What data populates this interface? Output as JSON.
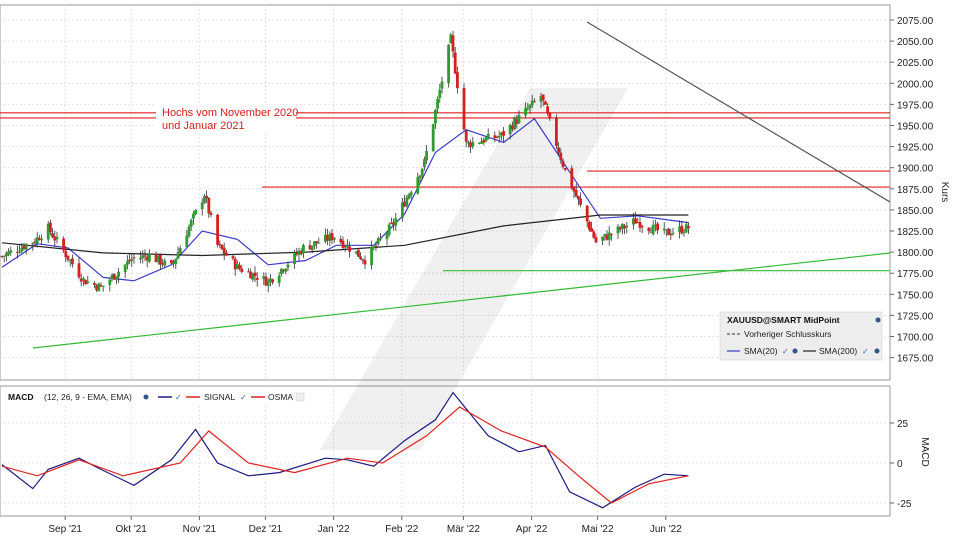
{
  "chart_data": [
    {
      "type": "candlestick",
      "ylabel": "Kurs",
      "ylim": [
        1655,
        2090
      ],
      "y_ticks": [
        "2075.00",
        "2050.00",
        "2025.00",
        "2000.00",
        "1975.00",
        "1950.00",
        "1925.00",
        "1900.00",
        "1875.00",
        "1850.00",
        "1825.00",
        "1800.00",
        "1775.00",
        "1750.00",
        "1725.00",
        "1700.00",
        "1675.00"
      ],
      "x_ticks": [
        "Sep '21",
        "Okt '21",
        "Nov '21",
        "Dez '21",
        "Jan '22",
        "Feb '22",
        "Mär '22",
        "Apr '22",
        "Mai '22",
        "Jun '22"
      ],
      "annotation": [
        "Hochs vom November 2020",
        "und Januar 2021"
      ],
      "legend": {
        "title": "XAUUSD@SMART MidPoint",
        "prev_close": "Vorheriger Schlusskurs",
        "sma20": "SMA(20)",
        "sma200": "SMA(200)"
      },
      "horizontal_levels": [
        1965,
        1959,
        1896,
        1877,
        1778
      ],
      "colors": {
        "up": "#2e9c2e",
        "down": "#d42020",
        "sma20": "#3a3ac8",
        "sma200": "#222222",
        "level": "#e02020",
        "support": "#33bb33",
        "trend": "#555555"
      },
      "series": [
        {
          "name": "close",
          "x": [
            "2021-08-16",
            "2021-08-31",
            "2021-09-06",
            "2021-09-22",
            "2021-09-30",
            "2021-10-14",
            "2021-10-22",
            "2021-11-01",
            "2021-11-08",
            "2021-11-16",
            "2021-11-22",
            "2021-12-01",
            "2021-12-15",
            "2021-12-31",
            "2022-01-14",
            "2022-01-28",
            "2022-02-10",
            "2022-02-24",
            "2022-03-08",
            "2022-03-15",
            "2022-03-31",
            "2022-04-18",
            "2022-04-29",
            "2022-05-13",
            "2022-05-31",
            "2022-06-13",
            "2022-06-24"
          ],
          "values": [
            1795,
            1814,
            1828,
            1767,
            1758,
            1792,
            1796,
            1782,
            1824,
            1869,
            1808,
            1782,
            1765,
            1805,
            1819,
            1791,
            1834,
            1906,
            2052,
            1928,
            1938,
            1985,
            1896,
            1812,
            1837,
            1822,
            1829
          ]
        },
        {
          "name": "SMA(20)",
          "x": [
            "2021-08-16",
            "2021-09-01",
            "2021-09-15",
            "2021-10-01",
            "2021-10-15",
            "2021-11-01",
            "2021-11-15",
            "2021-12-01",
            "2021-12-15",
            "2022-01-01",
            "2022-01-15",
            "2022-02-01",
            "2022-02-15",
            "2022-03-01",
            "2022-03-15",
            "2022-04-01",
            "2022-04-15",
            "2022-05-01",
            "2022-05-15",
            "2022-06-01",
            "2022-06-24"
          ],
          "values": [
            1782,
            1810,
            1805,
            1770,
            1766,
            1785,
            1825,
            1815,
            1785,
            1790,
            1808,
            1808,
            1845,
            1918,
            1945,
            1930,
            1958,
            1895,
            1840,
            1843,
            1835
          ]
        },
        {
          "name": "SMA(200)",
          "x": [
            "2021-08-16",
            "2021-10-01",
            "2021-11-15",
            "2022-01-01",
            "2022-02-15",
            "2022-04-01",
            "2022-05-15",
            "2022-06-24"
          ],
          "values": [
            1811,
            1799,
            1796,
            1800,
            1808,
            1831,
            1844,
            1844
          ]
        }
      ]
    },
    {
      "type": "line",
      "ylabel": "MACD",
      "y_ticks": [
        "25",
        "0",
        "-25"
      ],
      "legend": {
        "macd": "MACD",
        "params": "(12, 26, 9 - EMA, EMA)",
        "signal": "SIGNAL",
        "osma": "OSMA"
      },
      "series": [
        {
          "name": "MACD",
          "x": [
            "2021-08-16",
            "2021-08-30",
            "2021-09-06",
            "2021-09-20",
            "2021-09-30",
            "2021-10-15",
            "2021-11-01",
            "2021-11-12",
            "2021-11-22",
            "2021-12-06",
            "2021-12-20",
            "2022-01-10",
            "2022-01-20",
            "2022-02-01",
            "2022-02-15",
            "2022-03-01",
            "2022-03-09",
            "2022-03-25",
            "2022-04-08",
            "2022-04-20",
            "2022-05-01",
            "2022-05-16",
            "2022-05-31",
            "2022-06-13",
            "2022-06-24"
          ],
          "values": [
            -1,
            -16,
            -4,
            3,
            -4,
            -14,
            2,
            21,
            0,
            -8,
            -6,
            3,
            2,
            -2,
            14,
            27,
            44,
            17,
            7,
            11,
            -18,
            -28,
            -15,
            -7,
            -8
          ]
        },
        {
          "name": "SIGNAL",
          "x": [
            "2021-08-16",
            "2021-09-01",
            "2021-09-20",
            "2021-10-10",
            "2021-11-05",
            "2021-11-18",
            "2021-12-06",
            "2021-12-27",
            "2022-01-20",
            "2022-02-05",
            "2022-02-25",
            "2022-03-12",
            "2022-03-31",
            "2022-04-20",
            "2022-05-05",
            "2022-05-20",
            "2022-06-06",
            "2022-06-24"
          ],
          "values": [
            -2,
            -8,
            2,
            -8,
            0,
            20,
            0,
            -6,
            3,
            0,
            17,
            35,
            20,
            10,
            -8,
            -25,
            -13,
            -8
          ]
        }
      ]
    }
  ]
}
